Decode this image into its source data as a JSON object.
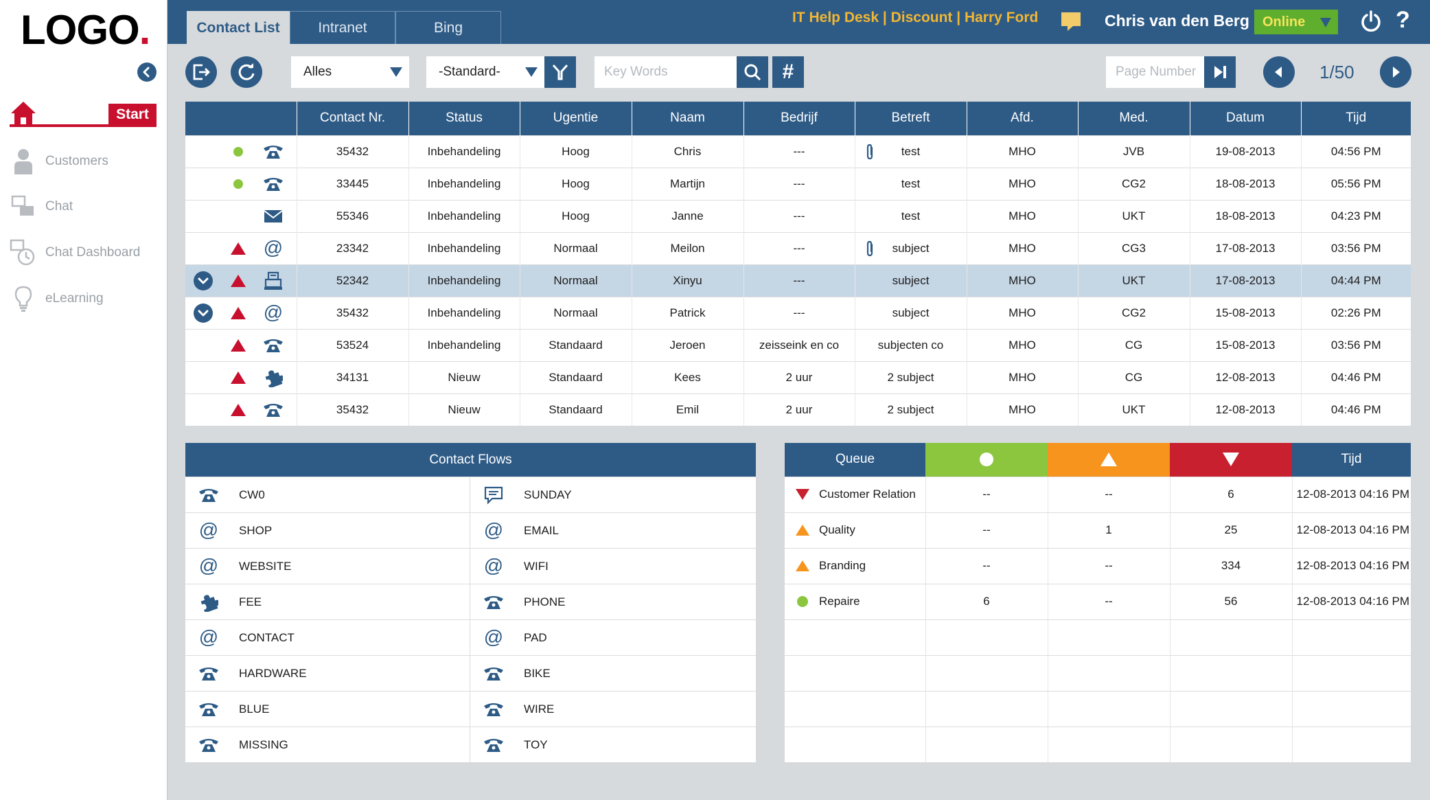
{
  "logo": {
    "text": "LOGO",
    "dot": "."
  },
  "sidebar": {
    "start_label": "Start",
    "items": [
      {
        "label": "Customers",
        "icon": "person-icon"
      },
      {
        "label": "Chat",
        "icon": "chat-icon"
      },
      {
        "label": "Chat Dashboard",
        "icon": "chat-dashboard-icon"
      },
      {
        "label": "eLearning",
        "icon": "lightbulb-icon"
      }
    ]
  },
  "header": {
    "tabs": [
      "Contact List",
      "Intranet",
      "Bing"
    ],
    "helpdesk": "IT Help Desk | Discount | Harry Ford",
    "user": "Chris van den Berg",
    "status": "Online",
    "help": "?"
  },
  "toolbar": {
    "filter_select": "Alles",
    "view_select": "-Standard-",
    "keywords_placeholder": "Key Words",
    "hash": "#",
    "page_placeholder": "Page Number",
    "page_current": "1",
    "page_total": "/50"
  },
  "table": {
    "columns": [
      "Contact Nr.",
      "Status",
      "Ugentie",
      "Naam",
      "Bedrijf",
      "Betreft",
      "Afd.",
      "Med.",
      "Datum",
      "Tijd"
    ],
    "rows": [
      {
        "nr": "35432",
        "status": "Inbehandeling",
        "ugentie": "Hoog",
        "naam": "Chris",
        "bedrijf": "---",
        "betreft": "test",
        "afd": "MHO",
        "med": "JVB",
        "datum": "19-08-2013",
        "tijd": "04:56 PM",
        "expand": false,
        "priority": "green",
        "channel": "phone",
        "attach": true,
        "selected": false
      },
      {
        "nr": "33445",
        "status": "Inbehandeling",
        "ugentie": "Hoog",
        "naam": "Martijn",
        "bedrijf": "---",
        "betreft": "test",
        "afd": "MHO",
        "med": "CG2",
        "datum": "18-08-2013",
        "tijd": "05:56 PM",
        "expand": false,
        "priority": "green",
        "channel": "phone",
        "attach": false,
        "selected": false
      },
      {
        "nr": "55346",
        "status": "Inbehandeling",
        "ugentie": "Hoog",
        "naam": "Janne",
        "bedrijf": "---",
        "betreft": "test",
        "afd": "MHO",
        "med": "UKT",
        "datum": "18-08-2013",
        "tijd": "04:23 PM",
        "expand": false,
        "priority": "none",
        "channel": "mail",
        "attach": false,
        "selected": false
      },
      {
        "nr": "23342",
        "status": "Inbehandeling",
        "ugentie": "Normaal",
        "naam": "Meilon",
        "bedrijf": "---",
        "betreft": "subject",
        "afd": "MHO",
        "med": "CG3",
        "datum": "17-08-2013",
        "tijd": "03:56 PM",
        "expand": false,
        "priority": "red",
        "channel": "at",
        "attach": true,
        "selected": false
      },
      {
        "nr": "52342",
        "status": "Inbehandeling",
        "ugentie": "Normaal",
        "naam": "Xinyu",
        "bedrijf": "---",
        "betreft": "subject",
        "afd": "MHO",
        "med": "UKT",
        "datum": "17-08-2013",
        "tijd": "04:44 PM",
        "expand": true,
        "priority": "red",
        "channel": "fax",
        "attach": false,
        "selected": true
      },
      {
        "nr": "35432",
        "status": "Inbehandeling",
        "ugentie": "Normaal",
        "naam": "Patrick",
        "bedrijf": "---",
        "betreft": "subject",
        "afd": "MHO",
        "med": "CG2",
        "datum": "15-08-2013",
        "tijd": "02:26 PM",
        "expand": true,
        "priority": "red",
        "channel": "at",
        "attach": false,
        "selected": false
      },
      {
        "nr": "53524",
        "status": "Inbehandeling",
        "ugentie": "Standaard",
        "naam": "Jeroen",
        "bedrijf": "zeisseink en co",
        "betreft": "subjecten co",
        "afd": "MHO",
        "med": "CG",
        "datum": "15-08-2013",
        "tijd": "03:56 PM",
        "expand": false,
        "priority": "red",
        "channel": "phone",
        "attach": false,
        "selected": false
      },
      {
        "nr": "34131",
        "status": "Nieuw",
        "ugentie": "Standaard",
        "naam": "Kees",
        "bedrijf": "2 uur",
        "betreft": "2 subject",
        "afd": "MHO",
        "med": "CG",
        "datum": "12-08-2013",
        "tijd": "04:46 PM",
        "expand": false,
        "priority": "red",
        "channel": "puzzle",
        "attach": false,
        "selected": false
      },
      {
        "nr": "35432",
        "status": "Nieuw",
        "ugentie": "Standaard",
        "naam": "Emil",
        "bedrijf": "2 uur",
        "betreft": "2 subject",
        "afd": "MHO",
        "med": "UKT",
        "datum": "12-08-2013",
        "tijd": "04:46 PM",
        "expand": false,
        "priority": "red",
        "channel": "phone",
        "attach": false,
        "selected": false
      }
    ]
  },
  "flows": {
    "title": "Contact Flows",
    "items": [
      {
        "label": "CW0",
        "icon": "phone"
      },
      {
        "label": "SUNDAY",
        "icon": "message"
      },
      {
        "label": "SHOP",
        "icon": "at"
      },
      {
        "label": "EMAIL",
        "icon": "at"
      },
      {
        "label": "WEBSITE",
        "icon": "at"
      },
      {
        "label": "WIFI",
        "icon": "at"
      },
      {
        "label": "FEE",
        "icon": "puzzle"
      },
      {
        "label": "PHONE",
        "icon": "phone"
      },
      {
        "label": "CONTACT",
        "icon": "at"
      },
      {
        "label": "PAD",
        "icon": "at"
      },
      {
        "label": "HARDWARE",
        "icon": "phone"
      },
      {
        "label": "BIKE",
        "icon": "phone"
      },
      {
        "label": "BLUE",
        "icon": "phone"
      },
      {
        "label": "WIRE",
        "icon": "phone"
      },
      {
        "label": "MISSING",
        "icon": "phone"
      },
      {
        "label": "TOY",
        "icon": "phone"
      }
    ]
  },
  "queue": {
    "title": "Queue",
    "time_header": "Tijd",
    "rows": [
      {
        "name": "Customer Relation",
        "icon": "down",
        "green": "--",
        "orange": "--",
        "red": "6",
        "time": "12-08-2013 04:16 PM"
      },
      {
        "name": "Quality",
        "icon": "up",
        "green": "--",
        "orange": "1",
        "red": "25",
        "time": "12-08-2013 04:16 PM"
      },
      {
        "name": "Branding",
        "icon": "up",
        "green": "--",
        "orange": "--",
        "red": "334",
        "time": "12-08-2013 04:16 PM"
      },
      {
        "name": "Repaire",
        "icon": "dot",
        "green": "6",
        "orange": "--",
        "red": "56",
        "time": "12-08-2013 04:16 PM"
      }
    ],
    "empty_rows": 4
  },
  "colors": {
    "primary": "#2e5b86",
    "red": "#c8102e",
    "green": "#8cc63f",
    "orange": "#f7941d",
    "queue_red": "#c8202f",
    "gold": "#f2b632",
    "online": "#5fae2e"
  }
}
